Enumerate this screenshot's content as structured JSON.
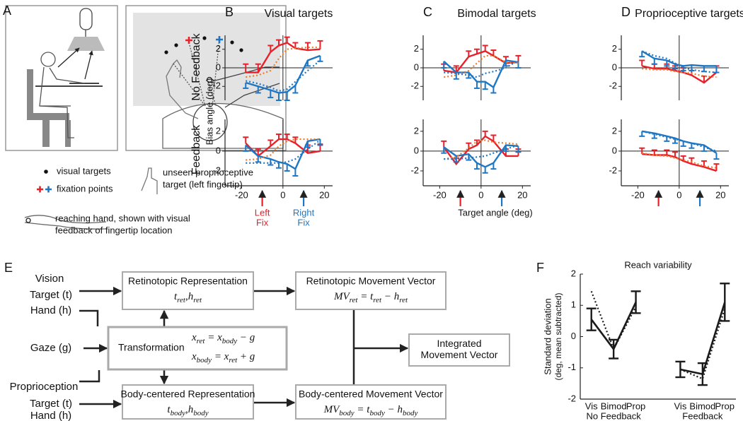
{
  "figure": {
    "panel_letters": [
      "A",
      "B",
      "C",
      "D",
      "E",
      "F"
    ],
    "panel_a": {
      "legend": [
        [
          "visual targets"
        ],
        [
          "fixation points"
        ],
        [
          "unseen proprioceptive",
          "target (left fingertip)"
        ],
        [
          "reaching hand, shown with visual",
          "feedback of fingertip location"
        ]
      ],
      "colors": {
        "red": "#e8202a",
        "blue": "#1f77c4"
      }
    },
    "panel_bcd": {
      "column_titles": [
        "Visual targets",
        "Bimodal targets",
        "Proprioceptive targets"
      ],
      "row_labels": [
        "No Feedback",
        "Feedback"
      ],
      "y_label": "Bias angle (deg)",
      "x_label": "Target angle (deg)",
      "fixations": [
        {
          "x": -10,
          "color": "#e8202a",
          "label": [
            "Left",
            "Fix"
          ]
        },
        {
          "x": 10,
          "color": "#1f77c4",
          "label": [
            "Right",
            "Fix"
          ]
        }
      ]
    },
    "panel_e": {
      "inputs": [
        "Vision",
        "Target (t)",
        "Hand (h)",
        "Gaze (g)",
        "Proprioception",
        "Target (t)",
        "Hand (h)"
      ],
      "boxes": [
        {
          "title": [
            "Retinotopic Representation"
          ],
          "formula": [
            [
              [
                "t",
                "ret"
              ],
              [
                ",h",
                "ret"
              ]
            ]
          ]
        },
        {
          "title": [
            "Transformation"
          ],
          "formula": [
            [
              [
                "x",
                "ret"
              ],
              [
                " = x",
                "body"
              ],
              [
                " − g"
              ]
            ],
            [
              [
                "x",
                "body"
              ],
              [
                " = x",
                "ret"
              ],
              [
                " + g"
              ]
            ]
          ]
        },
        {
          "title": [
            "Body-centered Representation"
          ],
          "formula": [
            [
              [
                "t",
                "body"
              ],
              [
                ",h",
                "body"
              ]
            ]
          ]
        },
        {
          "title": [
            "Retinotopic Movement Vector"
          ],
          "formula": [
            [
              [
                "MV",
                "ret"
              ],
              [
                " = t",
                "ret"
              ],
              [
                " − h",
                "ret"
              ]
            ]
          ]
        },
        {
          "title": [
            "Body-centered Movement Vector"
          ],
          "formula": [
            [
              [
                "MV",
                "body"
              ],
              [
                " = t",
                "body"
              ],
              [
                " − h",
                "body"
              ]
            ]
          ]
        },
        {
          "title": [
            "Integrated",
            "Movement Vector"
          ]
        }
      ]
    }
  },
  "chart_data": [
    {
      "type": "line",
      "x": [
        -18,
        -12,
        -6,
        -2,
        2,
        6,
        12,
        18
      ],
      "xlim": [
        -28,
        24
      ],
      "ylim": [
        -3.5,
        3.5
      ],
      "yticks": [
        -2,
        0,
        2
      ],
      "series": [
        {
          "color": "#e8202a",
          "values": [
            -0.5,
            -0.5,
            1.7,
            2.4,
            2.7,
            2.1,
            1.9,
            2.0
          ],
          "errors": [
            0.9,
            0.9,
            0.7,
            0.6,
            0.6,
            0.6,
            0.8,
            0.9
          ],
          "error_direction": "up"
        },
        {
          "color": "#1f77c4",
          "values": [
            -1.6,
            -2.0,
            -2.4,
            -2.7,
            -2.6,
            -1.9,
            0.8,
            1.3
          ],
          "errors": [
            0.6,
            0.7,
            0.8,
            0.8,
            0.9,
            0.8,
            0.6,
            0.6
          ],
          "error_direction": "down"
        },
        {
          "color": "#f07a2a",
          "values": [
            -1.0,
            -0.8,
            -0.3,
            1.0,
            2.0,
            2.1,
            2.2,
            2.2
          ],
          "dotted": true
        },
        {
          "color": "#1f77c4",
          "values": [
            -1.4,
            -1.7,
            -2.1,
            -2.5,
            -2.3,
            -1.5,
            -0.3,
            0.8
          ],
          "dotted": true
        }
      ]
    },
    {
      "type": "line",
      "x": [
        -18,
        -12,
        -6,
        -2,
        2,
        6,
        12,
        18
      ],
      "xlim": [
        -28,
        24
      ],
      "ylim": [
        -3.5,
        3.2
      ],
      "yticks": [
        -2,
        0,
        2
      ],
      "xticks": [
        -20,
        0,
        20
      ],
      "series": [
        {
          "color": "#e8202a",
          "values": [
            0.8,
            -0.5,
            0.5,
            1.2,
            1.2,
            0.8,
            -0.2,
            0.0
          ],
          "errors": [
            0.6,
            0.7,
            0.6,
            0.5,
            0.5,
            0.6,
            0.8,
            0.7
          ],
          "error_direction": "up"
        },
        {
          "color": "#1f77c4",
          "values": [
            0.6,
            -0.5,
            -0.8,
            -1.1,
            -1.3,
            -1.8,
            1.0,
            1.2
          ],
          "errors": [
            0.6,
            0.6,
            0.6,
            0.6,
            0.7,
            0.7,
            0.6,
            0.6
          ],
          "error_direction": "down"
        },
        {
          "color": "#f07a2a",
          "values": [
            -0.9,
            -0.8,
            -0.4,
            0.5,
            1.0,
            1.2,
            1.2,
            1.2
          ],
          "dotted": true
        },
        {
          "color": "#1f77c4",
          "values": [
            -1.2,
            -1.2,
            -1.2,
            -1.2,
            -1.1,
            -0.8,
            0.2,
            1.1
          ],
          "dotted": true
        }
      ]
    },
    {
      "type": "line",
      "x": [
        -18,
        -12,
        -6,
        -2,
        2,
        6,
        12,
        18
      ],
      "xlim": [
        -28,
        24
      ],
      "ylim": [
        -3.5,
        3.5
      ],
      "yticks": [
        -2,
        0,
        2
      ],
      "series": [
        {
          "color": "#e8202a",
          "values": [
            -0.3,
            -0.5,
            1.2,
            1.5,
            1.8,
            1.3,
            0.5,
            0.6
          ],
          "errors": [
            0.7,
            0.7,
            0.6,
            0.5,
            0.6,
            0.6,
            0.7,
            0.7
          ],
          "error_direction": "up"
        },
        {
          "color": "#1f77c4",
          "values": [
            0.7,
            -0.5,
            -0.5,
            -1.5,
            -1.5,
            -2.1,
            0.8,
            0.6
          ],
          "errors": [
            0.7,
            0.7,
            0.6,
            0.7,
            0.8,
            0.6,
            0.6,
            0.6
          ],
          "error_direction": "down"
        },
        {
          "color": "#f07a2a",
          "values": [
            -1.0,
            -0.8,
            -0.3,
            0.5,
            1.3,
            1.3,
            0.6,
            0.5
          ],
          "dotted": true
        },
        {
          "color": "#1f77c4",
          "values": [
            -0.5,
            -0.6,
            -0.8,
            -1.0,
            -0.6,
            -0.4,
            0.0,
            0.8
          ],
          "dotted": true
        }
      ]
    },
    {
      "type": "line",
      "x": [
        -18,
        -12,
        -6,
        -2,
        2,
        6,
        12,
        18
      ],
      "xlim": [
        -28,
        24
      ],
      "ylim": [
        -3.5,
        3.2
      ],
      "yticks": [
        -2,
        0,
        2
      ],
      "xticks": [
        -20,
        0,
        20
      ],
      "series": [
        {
          "color": "#e8202a",
          "values": [
            0.4,
            -1.3,
            0.2,
            0.6,
            1.5,
            1.0,
            -0.5,
            -0.5
          ],
          "errors": [
            0.6,
            0.6,
            0.6,
            0.5,
            0.5,
            0.6,
            0.7,
            0.7
          ],
          "error_direction": "up"
        },
        {
          "color": "#1f77c4",
          "values": [
            0.4,
            -0.5,
            -0.3,
            -1.2,
            -1.6,
            -1.2,
            0.6,
            0.5
          ],
          "errors": [
            0.6,
            0.6,
            0.6,
            0.6,
            0.6,
            0.6,
            0.6,
            0.6
          ],
          "error_direction": "down"
        },
        {
          "color": "#f07a2a",
          "values": [
            -0.8,
            -0.6,
            0.3,
            1.0,
            1.1,
            0.9,
            0.8,
            0.7
          ],
          "dotted": true
        },
        {
          "color": "#1f77c4",
          "values": [
            -0.8,
            -0.8,
            -0.7,
            -0.6,
            -0.5,
            -0.2,
            0.2,
            0.6
          ],
          "dotted": true
        }
      ]
    },
    {
      "type": "line",
      "x": [
        -18,
        -12,
        -6,
        -2,
        2,
        6,
        12,
        18
      ],
      "xlim": [
        -28,
        24
      ],
      "ylim": [
        -3.5,
        3.5
      ],
      "yticks": [
        -2,
        0,
        2
      ],
      "series": [
        {
          "color": "#e8202a",
          "values": [
            0.2,
            -0.1,
            -0.1,
            -0.3,
            -0.5,
            -0.8,
            -1.6,
            -0.5
          ],
          "errors": [
            0.6,
            0.5,
            0.5,
            0.5,
            0.5,
            0.5,
            0.7,
            0.7
          ],
          "error_direction": "up"
        },
        {
          "color": "#1f77c4",
          "values": [
            1.8,
            1.0,
            0.8,
            0.4,
            0.2,
            0.3,
            0.2,
            0.2
          ],
          "errors": [
            0.6,
            0.6,
            0.6,
            0.5,
            0.5,
            0.6,
            0.6,
            0.7
          ],
          "error_direction": "down"
        },
        {
          "color": "#f07a2a",
          "values": [
            -0.1,
            -0.2,
            -0.2,
            -0.4,
            -0.5,
            -0.6,
            -0.9,
            -1.0
          ],
          "dotted": true
        },
        {
          "color": "#1f77c4",
          "values": [
            1.8,
            1.3,
            1.0,
            0.5,
            0.0,
            -0.2,
            -0.4,
            -0.5
          ],
          "dotted": true
        }
      ]
    },
    {
      "type": "line",
      "x": [
        -18,
        -12,
        -6,
        -2,
        2,
        6,
        12,
        18
      ],
      "xlim": [
        -28,
        24
      ],
      "ylim": [
        -3.5,
        3.2
      ],
      "yticks": [
        -2,
        0,
        2
      ],
      "xticks": [
        -20,
        0,
        20
      ],
      "series": [
        {
          "color": "#e8202a",
          "values": [
            -0.3,
            -0.4,
            -0.4,
            -0.6,
            -1.0,
            -1.3,
            -1.6,
            -2.0
          ],
          "errors": [
            0.6,
            0.5,
            0.5,
            0.5,
            0.5,
            0.6,
            0.6,
            0.7
          ],
          "error_direction": "up"
        },
        {
          "color": "#1f77c4",
          "values": [
            2.0,
            1.8,
            1.5,
            1.3,
            1.0,
            0.8,
            0.6,
            -0.2
          ],
          "errors": [
            0.5,
            0.5,
            0.5,
            0.5,
            0.5,
            0.5,
            0.6,
            0.6
          ],
          "error_direction": "down"
        },
        {
          "color": "#f07a2a",
          "values": [
            -0.2,
            -0.4,
            -0.5,
            -0.7,
            -0.9,
            -1.1,
            -1.5,
            -1.7
          ],
          "dotted": true
        },
        {
          "color": "#1f77c4",
          "values": [
            2.0,
            1.7,
            1.4,
            1.2,
            1.0,
            0.8,
            0.4,
            0.0
          ],
          "dotted": true
        }
      ]
    },
    {
      "type": "errorline",
      "title": "Reach variability",
      "y_label": [
        "Standard deviation",
        "(deg, mean subtracted)"
      ],
      "ylim": [
        -2,
        2
      ],
      "yticks": [
        -2,
        -1,
        0,
        1,
        2
      ],
      "color": "#1a1a1a",
      "groups": [
        {
          "name": "No Feedback",
          "categories": [
            "Vis",
            "Bimod",
            "Prop"
          ],
          "values": [
            0.55,
            -0.4,
            1.1
          ],
          "errors": [
            0.35,
            0.3,
            0.35
          ],
          "model": [
            1.45,
            -0.4,
            0.95
          ]
        },
        {
          "name": "Feedback",
          "categories": [
            "Vis",
            "Bimod",
            "Prop"
          ],
          "values": [
            -1.05,
            -1.2,
            1.1
          ],
          "errors": [
            0.25,
            0.35,
            0.6
          ],
          "model": [
            -1.05,
            -1.35,
            0.9
          ]
        }
      ]
    }
  ]
}
